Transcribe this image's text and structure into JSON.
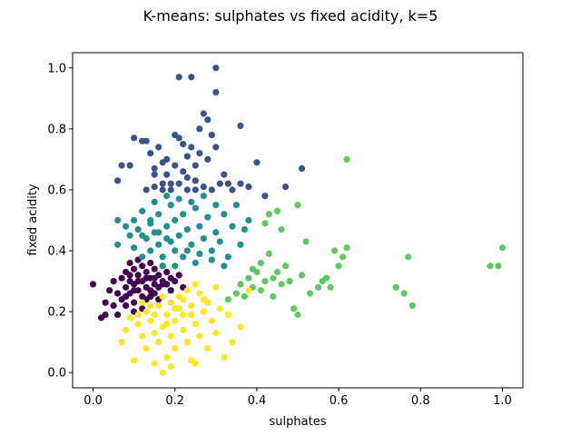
{
  "chart_data": {
    "type": "scatter",
    "title": "K-means: sulphates vs fixed acidity, k=5",
    "xlabel": "sulphates",
    "ylabel": "fixed acidity",
    "xlim": [
      -0.05,
      1.05
    ],
    "ylim": [
      -0.05,
      1.05
    ],
    "xticks": [
      "0.0",
      "0.2",
      "0.4",
      "0.6",
      "0.8",
      "1.0"
    ],
    "yticks": [
      "0.0",
      "0.2",
      "0.4",
      "0.6",
      "0.8",
      "1.0"
    ],
    "grid": false,
    "legend": "none",
    "series": [
      {
        "color": "#440154",
        "points": [
          [
            0.0,
            0.29
          ],
          [
            0.02,
            0.18
          ],
          [
            0.03,
            0.19
          ],
          [
            0.03,
            0.23
          ],
          [
            0.04,
            0.27
          ],
          [
            0.05,
            0.3
          ],
          [
            0.05,
            0.22
          ],
          [
            0.06,
            0.26
          ],
          [
            0.07,
            0.31
          ],
          [
            0.07,
            0.24
          ],
          [
            0.08,
            0.33
          ],
          [
            0.08,
            0.28
          ],
          [
            0.08,
            0.22
          ],
          [
            0.09,
            0.36
          ],
          [
            0.09,
            0.3
          ],
          [
            0.09,
            0.26
          ],
          [
            0.1,
            0.34
          ],
          [
            0.1,
            0.29
          ],
          [
            0.1,
            0.23
          ],
          [
            0.11,
            0.37
          ],
          [
            0.11,
            0.32
          ],
          [
            0.11,
            0.27
          ],
          [
            0.12,
            0.35
          ],
          [
            0.12,
            0.3
          ],
          [
            0.12,
            0.25
          ],
          [
            0.13,
            0.33
          ],
          [
            0.13,
            0.28
          ],
          [
            0.13,
            0.24
          ],
          [
            0.14,
            0.36
          ],
          [
            0.14,
            0.31
          ],
          [
            0.14,
            0.27
          ],
          [
            0.15,
            0.34
          ],
          [
            0.15,
            0.29
          ],
          [
            0.15,
            0.26
          ],
          [
            0.16,
            0.32
          ],
          [
            0.16,
            0.28
          ],
          [
            0.17,
            0.35
          ],
          [
            0.17,
            0.3
          ],
          [
            0.18,
            0.33
          ],
          [
            0.18,
            0.29
          ],
          [
            0.19,
            0.31
          ],
          [
            0.19,
            0.27
          ],
          [
            0.2,
            0.3
          ],
          [
            0.21,
            0.32
          ],
          [
            0.22,
            0.28
          ],
          [
            0.1,
            0.2
          ],
          [
            0.06,
            0.19
          ],
          [
            0.12,
            0.21
          ],
          [
            0.16,
            0.24
          ],
          [
            0.09,
            0.32
          ],
          [
            0.11,
            0.3
          ],
          [
            0.13,
            0.31
          ],
          [
            0.15,
            0.31
          ],
          [
            0.17,
            0.29
          ],
          [
            0.14,
            0.25
          ],
          [
            0.08,
            0.25
          ],
          [
            0.1,
            0.27
          ]
        ]
      },
      {
        "color": "#3b528b",
        "points": [
          [
            0.06,
            0.63
          ],
          [
            0.07,
            0.68
          ],
          [
            0.09,
            0.68
          ],
          [
            0.1,
            0.77
          ],
          [
            0.12,
            0.76
          ],
          [
            0.13,
            0.76
          ],
          [
            0.14,
            0.72
          ],
          [
            0.15,
            0.67
          ],
          [
            0.16,
            0.74
          ],
          [
            0.17,
            0.69
          ],
          [
            0.18,
            0.65
          ],
          [
            0.19,
            0.62
          ],
          [
            0.2,
            0.78
          ],
          [
            0.21,
            0.77
          ],
          [
            0.21,
            0.97
          ],
          [
            0.22,
            0.75
          ],
          [
            0.23,
            0.71
          ],
          [
            0.24,
            0.97
          ],
          [
            0.25,
            0.68
          ],
          [
            0.26,
            0.8
          ],
          [
            0.27,
            0.85
          ],
          [
            0.28,
            0.83
          ],
          [
            0.29,
            0.78
          ],
          [
            0.3,
            0.92
          ],
          [
            0.3,
            1.0
          ],
          [
            0.32,
            0.65
          ],
          [
            0.33,
            0.62
          ],
          [
            0.36,
            0.81
          ],
          [
            0.4,
            0.69
          ],
          [
            0.47,
            0.61
          ],
          [
            0.51,
            0.67
          ],
          [
            0.13,
            0.6
          ],
          [
            0.15,
            0.61
          ],
          [
            0.17,
            0.62
          ],
          [
            0.19,
            0.6
          ],
          [
            0.21,
            0.62
          ],
          [
            0.23,
            0.6
          ],
          [
            0.25,
            0.63
          ],
          [
            0.27,
            0.61
          ],
          [
            0.29,
            0.6
          ],
          [
            0.31,
            0.62
          ],
          [
            0.34,
            0.6
          ],
          [
            0.36,
            0.62
          ],
          [
            0.38,
            0.61
          ],
          [
            0.42,
            0.58
          ],
          [
            0.18,
            0.7
          ],
          [
            0.2,
            0.68
          ],
          [
            0.22,
            0.66
          ],
          [
            0.24,
            0.74
          ],
          [
            0.26,
            0.72
          ],
          [
            0.28,
            0.7
          ],
          [
            0.3,
            0.74
          ],
          [
            0.15,
            0.65
          ],
          [
            0.17,
            0.6
          ],
          [
            0.23,
            0.64
          ],
          [
            0.25,
            0.6
          ]
        ]
      },
      {
        "color": "#21918c",
        "points": [
          [
            0.06,
            0.5
          ],
          [
            0.06,
            0.42
          ],
          [
            0.08,
            0.48
          ],
          [
            0.09,
            0.45
          ],
          [
            0.1,
            0.5
          ],
          [
            0.1,
            0.41
          ],
          [
            0.11,
            0.47
          ],
          [
            0.12,
            0.38
          ],
          [
            0.12,
            0.53
          ],
          [
            0.13,
            0.44
          ],
          [
            0.14,
            0.49
          ],
          [
            0.14,
            0.4
          ],
          [
            0.15,
            0.46
          ],
          [
            0.16,
            0.52
          ],
          [
            0.16,
            0.42
          ],
          [
            0.17,
            0.38
          ],
          [
            0.18,
            0.48
          ],
          [
            0.18,
            0.44
          ],
          [
            0.19,
            0.55
          ],
          [
            0.2,
            0.4
          ],
          [
            0.2,
            0.5
          ],
          [
            0.21,
            0.45
          ],
          [
            0.22,
            0.52
          ],
          [
            0.22,
            0.38
          ],
          [
            0.23,
            0.47
          ],
          [
            0.24,
            0.42
          ],
          [
            0.25,
            0.54
          ],
          [
            0.25,
            0.36
          ],
          [
            0.26,
            0.48
          ],
          [
            0.27,
            0.44
          ],
          [
            0.28,
            0.51
          ],
          [
            0.29,
            0.4
          ],
          [
            0.3,
            0.46
          ],
          [
            0.31,
            0.43
          ],
          [
            0.32,
            0.52
          ],
          [
            0.33,
            0.38
          ],
          [
            0.34,
            0.48
          ],
          [
            0.35,
            0.55
          ],
          [
            0.36,
            0.42
          ],
          [
            0.37,
            0.47
          ],
          [
            0.38,
            0.5
          ],
          [
            0.15,
            0.56
          ],
          [
            0.18,
            0.58
          ],
          [
            0.21,
            0.57
          ],
          [
            0.24,
            0.56
          ],
          [
            0.27,
            0.58
          ],
          [
            0.3,
            0.55
          ],
          [
            0.12,
            0.45
          ],
          [
            0.14,
            0.5
          ],
          [
            0.16,
            0.46
          ],
          [
            0.19,
            0.43
          ],
          [
            0.23,
            0.4
          ],
          [
            0.26,
            0.39
          ],
          [
            0.29,
            0.37
          ],
          [
            0.32,
            0.35
          ],
          [
            0.2,
            0.35
          ],
          [
            0.17,
            0.35
          ]
        ]
      },
      {
        "color": "#5ec962",
        "points": [
          [
            0.33,
            0.24
          ],
          [
            0.35,
            0.26
          ],
          [
            0.36,
            0.29
          ],
          [
            0.38,
            0.31
          ],
          [
            0.39,
            0.28
          ],
          [
            0.4,
            0.33
          ],
          [
            0.41,
            0.36
          ],
          [
            0.42,
            0.3
          ],
          [
            0.43,
            0.39
          ],
          [
            0.44,
            0.25
          ],
          [
            0.45,
            0.33
          ],
          [
            0.46,
            0.29
          ],
          [
            0.47,
            0.35
          ],
          [
            0.48,
            0.3
          ],
          [
            0.49,
            0.21
          ],
          [
            0.5,
            0.19
          ],
          [
            0.51,
            0.32
          ],
          [
            0.52,
            0.43
          ],
          [
            0.53,
            0.26
          ],
          [
            0.55,
            0.28
          ],
          [
            0.56,
            0.3
          ],
          [
            0.58,
            0.28
          ],
          [
            0.59,
            0.4
          ],
          [
            0.6,
            0.35
          ],
          [
            0.61,
            0.38
          ],
          [
            0.62,
            0.41
          ],
          [
            0.62,
            0.7
          ],
          [
            0.42,
            0.49
          ],
          [
            0.43,
            0.52
          ],
          [
            0.45,
            0.53
          ],
          [
            0.46,
            0.47
          ],
          [
            0.5,
            0.55
          ],
          [
            0.57,
            0.31
          ],
          [
            0.74,
            0.28
          ],
          [
            0.76,
            0.26
          ],
          [
            0.77,
            0.38
          ],
          [
            0.78,
            0.22
          ],
          [
            0.97,
            0.35
          ],
          [
            0.99,
            0.35
          ],
          [
            1.0,
            0.41
          ],
          [
            0.37,
            0.25
          ],
          [
            0.39,
            0.34
          ],
          [
            0.41,
            0.27
          ],
          [
            0.44,
            0.31
          ]
        ]
      },
      {
        "color": "#fde725",
        "points": [
          [
            0.07,
            0.1
          ],
          [
            0.08,
            0.14
          ],
          [
            0.09,
            0.18
          ],
          [
            0.1,
            0.04
          ],
          [
            0.11,
            0.16
          ],
          [
            0.12,
            0.12
          ],
          [
            0.13,
            0.08
          ],
          [
            0.13,
            0.2
          ],
          [
            0.14,
            0.17
          ],
          [
            0.15,
            0.03
          ],
          [
            0.15,
            0.13
          ],
          [
            0.16,
            0.1
          ],
          [
            0.16,
            0.22
          ],
          [
            0.17,
            0.0
          ],
          [
            0.17,
            0.15
          ],
          [
            0.18,
            0.05
          ],
          [
            0.18,
            0.19
          ],
          [
            0.19,
            0.12
          ],
          [
            0.2,
            0.08
          ],
          [
            0.2,
            0.17
          ],
          [
            0.21,
            0.21
          ],
          [
            0.22,
            0.14
          ],
          [
            0.22,
            0.24
          ],
          [
            0.23,
            0.1
          ],
          [
            0.24,
            0.04
          ],
          [
            0.24,
            0.19
          ],
          [
            0.25,
            0.16
          ],
          [
            0.26,
            0.26
          ],
          [
            0.26,
            0.12
          ],
          [
            0.27,
            0.2
          ],
          [
            0.28,
            0.08
          ],
          [
            0.28,
            0.23
          ],
          [
            0.29,
            0.17
          ],
          [
            0.3,
            0.28
          ],
          [
            0.3,
            0.13
          ],
          [
            0.31,
            0.21
          ],
          [
            0.32,
            0.05
          ],
          [
            0.33,
            0.19
          ],
          [
            0.34,
            0.1
          ],
          [
            0.36,
            0.15
          ],
          [
            0.38,
            0.27
          ],
          [
            0.11,
            0.19
          ],
          [
            0.12,
            0.23
          ],
          [
            0.14,
            0.22
          ],
          [
            0.17,
            0.25
          ],
          [
            0.19,
            0.23
          ],
          [
            0.21,
            0.25
          ],
          [
            0.23,
            0.27
          ],
          [
            0.25,
            0.29
          ],
          [
            0.27,
            0.24
          ],
          [
            0.15,
            0.19
          ],
          [
            0.18,
            0.16
          ],
          [
            0.2,
            0.21
          ],
          [
            0.22,
            0.19
          ],
          [
            0.24,
            0.22
          ],
          [
            0.19,
            0.02
          ],
          [
            0.25,
            0.03
          ]
        ]
      }
    ]
  }
}
